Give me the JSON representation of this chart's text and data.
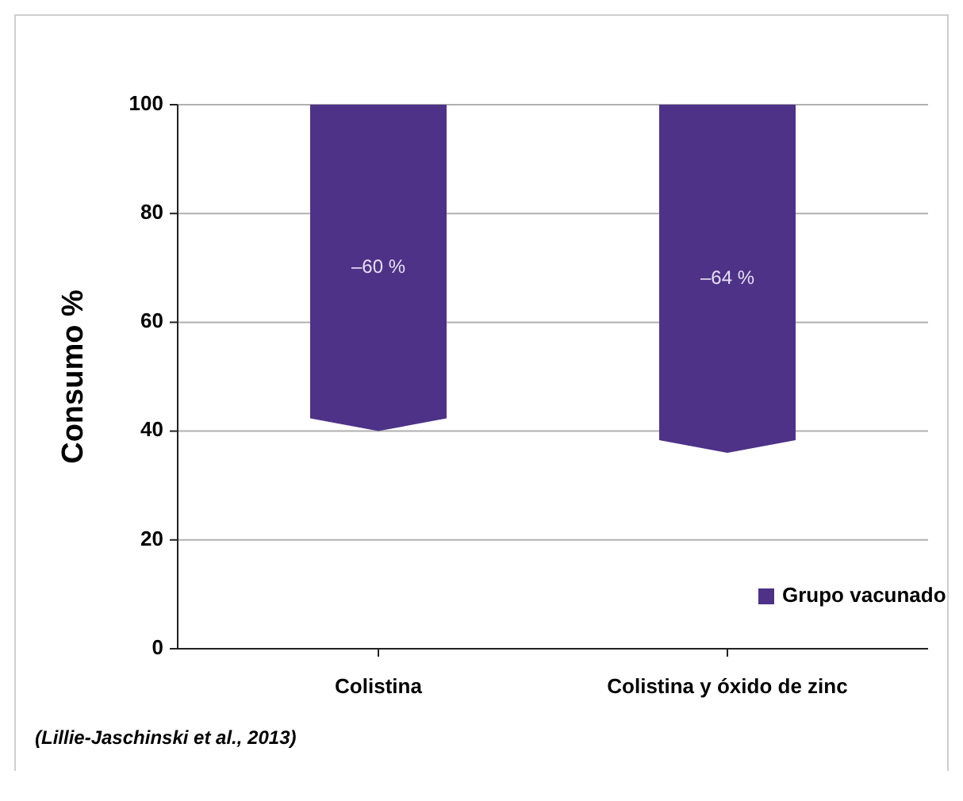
{
  "chart_data": {
    "type": "bar",
    "ylabel": "Consumo %",
    "categories": [
      "Colistina",
      "Colistina y óxido de zinc"
    ],
    "series": [
      {
        "name": "Grupo vacunado",
        "color": "#4e3288",
        "values": [
          -60,
          -64
        ],
        "base": [
          100,
          100
        ],
        "value_labels": [
          "–60 %",
          "–64 %"
        ]
      }
    ],
    "ylim": [
      0,
      100
    ],
    "yticks": [
      0,
      20,
      40,
      60,
      80,
      100
    ],
    "grid": "y",
    "legend": "bottom right",
    "annotations": [
      "(Lillie-Jaschinski et al., 2013)"
    ]
  }
}
